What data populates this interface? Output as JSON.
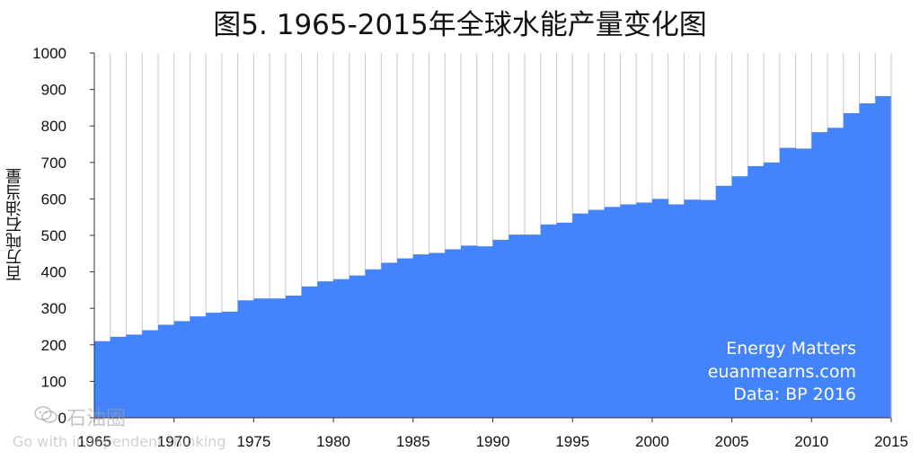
{
  "title": "图5. 1965-2015年全球水能产量变化图",
  "ylabel": "百万吨石油当量",
  "annotation": {
    "line1": "Energy Matters",
    "line2": "euanmearns.com",
    "line3": "Data: BP 2016"
  },
  "watermark": {
    "name": "石油圈",
    "slogan": "Go with independent thinking",
    "icon": "wechat-icon"
  },
  "colors": {
    "fill": "#4383fb",
    "grid": "#c8c8c8",
    "axis": "#333333",
    "annotation_text": "#ffffff"
  },
  "chart_data": {
    "type": "area",
    "title": "图5. 1965-2015年全球水能产量变化图",
    "xlabel": "",
    "ylabel": "百万吨石油当量",
    "xlim": [
      1965,
      2015
    ],
    "ylim": [
      0,
      1000
    ],
    "yticks": [
      0,
      100,
      200,
      300,
      400,
      500,
      600,
      700,
      800,
      900,
      1000
    ],
    "xticks": [
      1965,
      1970,
      1975,
      1980,
      1985,
      1990,
      1995,
      2000,
      2005,
      2010,
      2015
    ],
    "grid": "vertical",
    "step": true,
    "x": [
      1965,
      1966,
      1967,
      1968,
      1969,
      1970,
      1971,
      1972,
      1973,
      1974,
      1975,
      1976,
      1977,
      1978,
      1979,
      1980,
      1981,
      1982,
      1983,
      1984,
      1985,
      1986,
      1987,
      1988,
      1989,
      1990,
      1991,
      1992,
      1993,
      1994,
      1995,
      1996,
      1997,
      1998,
      1999,
      2000,
      2001,
      2002,
      2003,
      2004,
      2005,
      2006,
      2007,
      2008,
      2009,
      2010,
      2011,
      2012,
      2013,
      2014
    ],
    "values": [
      210,
      222,
      228,
      240,
      255,
      265,
      278,
      288,
      291,
      322,
      327,
      327,
      335,
      360,
      374,
      380,
      390,
      407,
      425,
      437,
      448,
      452,
      462,
      472,
      470,
      488,
      502,
      502,
      530,
      535,
      560,
      570,
      578,
      585,
      590,
      600,
      585,
      598,
      597,
      636,
      662,
      690,
      700,
      740,
      738,
      783,
      795,
      835,
      862,
      882
    ]
  }
}
